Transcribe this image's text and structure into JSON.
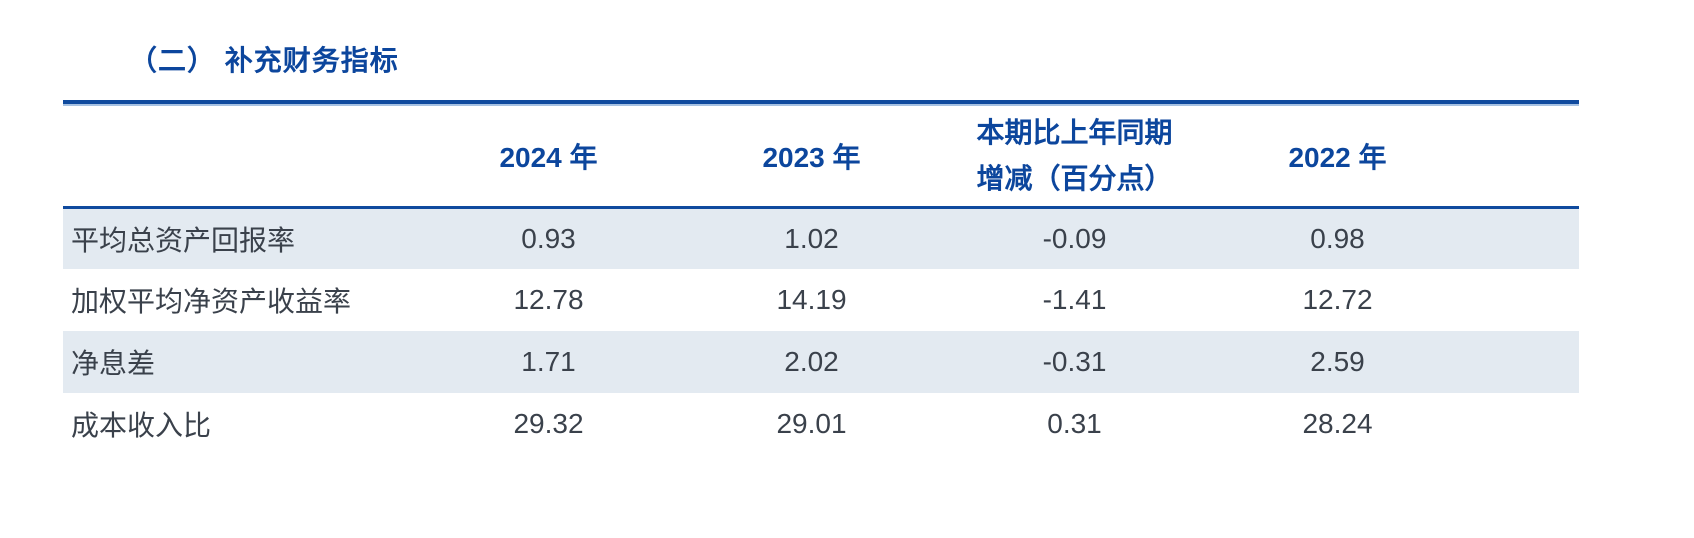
{
  "section": {
    "title": "（二） 补充财务指标"
  },
  "table": {
    "header": {
      "indicator": "",
      "col_2024": "2024 年",
      "col_2023": "2023 年",
      "col_change_line1": "本期比上年同期",
      "col_change_line2": "增减（百分点）",
      "col_2022": "2022 年"
    },
    "rows": [
      {
        "indicator": "平均总资产回报率",
        "v2024": "0.93",
        "v2023": "1.02",
        "change": "-0.09",
        "v2022": "0.98"
      },
      {
        "indicator": "加权平均净资产收益率",
        "v2024": "12.78",
        "v2023": "14.19",
        "change": "-1.41",
        "v2022": "12.72"
      },
      {
        "indicator": "净息差",
        "v2024": "1.71",
        "v2023": "2.02",
        "change": "-0.31",
        "v2022": "2.59"
      },
      {
        "indicator": "成本收入比",
        "v2024": "29.32",
        "v2023": "29.01",
        "change": "0.31",
        "v2022": "28.24"
      }
    ]
  },
  "colors": {
    "accent_blue_text": "#0c469d",
    "border_blue": "#0f4a9e",
    "border_light_blue": "#a6c1e2",
    "row_shade": "#e3eaf1",
    "body_text": "#3a414b",
    "page_background": "#ffffff"
  }
}
